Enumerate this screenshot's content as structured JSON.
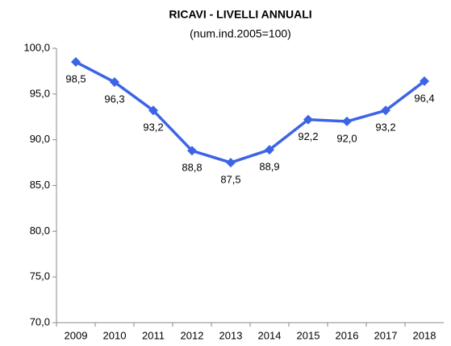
{
  "chart_data": {
    "type": "line",
    "title": "RICAVI - LIVELLI ANNUALI",
    "subtitle": "(num.ind.2005=100)",
    "categories": [
      "2009",
      "2010",
      "2011",
      "2012",
      "2013",
      "2014",
      "2015",
      "2016",
      "2017",
      "2018"
    ],
    "series": [
      {
        "name": "Ricavi",
        "color": "#3c64e6",
        "values": [
          98.5,
          96.3,
          93.2,
          88.8,
          87.5,
          88.9,
          92.2,
          92.0,
          93.2,
          96.4
        ],
        "value_labels": [
          "98,5",
          "96,3",
          "93,2",
          "88,8",
          "87,5",
          "88,9",
          "92,2",
          "92,0",
          "93,2",
          "96,4"
        ]
      }
    ],
    "ylim": [
      70,
      100
    ],
    "yticks": [
      {
        "value": 70,
        "label": "70,0"
      },
      {
        "value": 75,
        "label": "75,0"
      },
      {
        "value": 80,
        "label": "80,0"
      },
      {
        "value": 85,
        "label": "85,0"
      },
      {
        "value": 90,
        "label": "90,0"
      },
      {
        "value": 95,
        "label": "95,0"
      },
      {
        "value": 100,
        "label": "100,0"
      }
    ],
    "grid": false
  }
}
